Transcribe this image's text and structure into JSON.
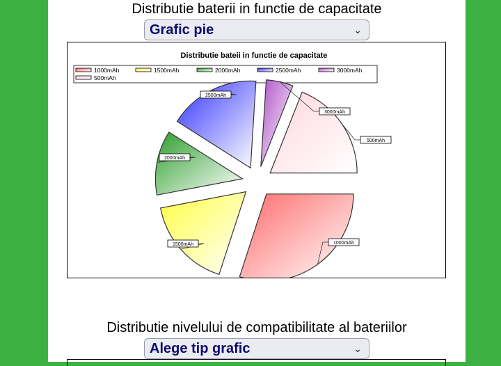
{
  "section1": {
    "title": "Distributie baterii in functie de capacitate",
    "select_value": "Grafic pie"
  },
  "section2": {
    "title": "Distributie nivelului de compatibilitate al bateriilor",
    "select_value": "Alege tip grafic"
  },
  "chart_data": {
    "type": "pie",
    "title": "Distributie bateii in functie de capacitate",
    "legend_position": "top",
    "categories": [
      "1000mAh",
      "1500mAh",
      "2000mAh",
      "2500mAh",
      "3000mAh",
      "500mAh"
    ],
    "values": [
      30,
      17,
      12,
      17,
      5,
      19
    ],
    "exploded": true,
    "colors": [
      "#ff6b6b",
      "#ffff44",
      "#2e9e2e",
      "#3333ff",
      "#b055c8",
      "#ffd6de"
    ]
  },
  "icons": {
    "dropdown": "chevron-down-icon"
  }
}
